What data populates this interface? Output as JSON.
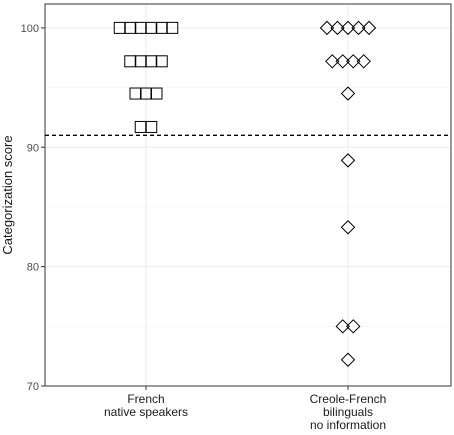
{
  "chart_data": {
    "type": "scatter",
    "title": "",
    "xlabel": "",
    "ylabel": "Categorization score",
    "ylim": [
      70,
      102
    ],
    "y_ticks": [
      70,
      80,
      90,
      100
    ],
    "grid": true,
    "reference_line": {
      "value": 91,
      "style": "dashed"
    },
    "categories": [
      {
        "label_lines": [
          "French",
          "native speakers"
        ]
      },
      {
        "label_lines": [
          "Creole-French",
          "bilinguals",
          "no information"
        ]
      }
    ],
    "series": [
      {
        "marker": "square",
        "category_index": 0,
        "points": [
          {
            "y": 100,
            "count": 6
          },
          {
            "y": 97.2,
            "count": 4
          },
          {
            "y": 94.5,
            "count": 3
          },
          {
            "y": 91.7,
            "count": 2
          }
        ]
      },
      {
        "marker": "diamond",
        "category_index": 1,
        "points": [
          {
            "y": 100,
            "count": 5
          },
          {
            "y": 97.2,
            "count": 4
          },
          {
            "y": 94.5,
            "count": 1
          },
          {
            "y": 88.9,
            "count": 1
          },
          {
            "y": 83.3,
            "count": 1
          },
          {
            "y": 75,
            "count": 2
          },
          {
            "y": 72.2,
            "count": 1
          }
        ]
      }
    ]
  }
}
